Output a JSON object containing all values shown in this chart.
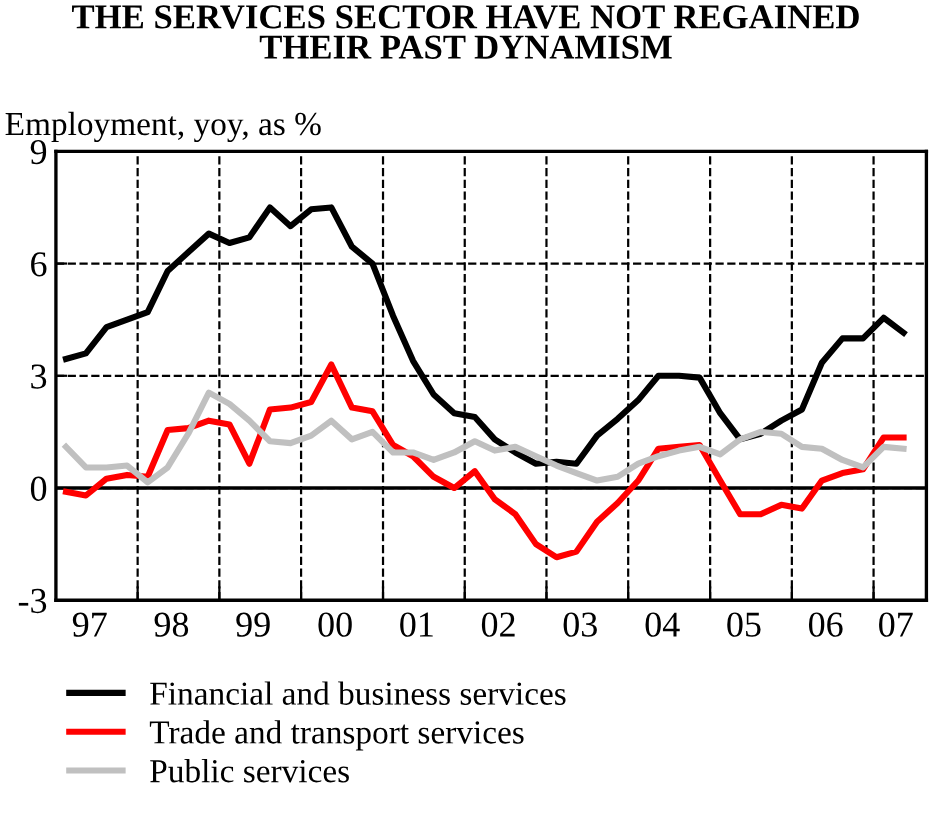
{
  "chart_data": {
    "type": "line",
    "title": "THE SERVICES SECTOR HAVE NOT REGAINED\nTHEIR PAST DYNAMISM",
    "ylabel": "Employment, yoy, as %",
    "x": [
      "1997-02-15",
      "1997-05-15",
      "1997-08-15",
      "1997-11-15",
      "1998-02-15",
      "1998-05-15",
      "1998-08-15",
      "1998-11-15",
      "1999-02-15",
      "1999-05-15",
      "1999-08-15",
      "1999-11-15",
      "2000-02-15",
      "2000-05-15",
      "2000-08-15",
      "2000-11-15",
      "2001-02-15",
      "2001-05-15",
      "2001-08-15",
      "2001-11-15",
      "2002-02-15",
      "2002-05-15",
      "2002-08-15",
      "2002-11-15",
      "2003-02-15",
      "2003-05-15",
      "2003-08-15",
      "2003-11-15",
      "2004-02-15",
      "2004-05-15",
      "2004-08-15",
      "2004-11-15",
      "2005-02-15",
      "2005-05-15",
      "2005-08-15",
      "2005-11-15",
      "2006-02-15",
      "2006-05-15",
      "2006-08-15",
      "2006-11-15",
      "2007-02-15",
      "2007-05-15"
    ],
    "series": [
      {
        "name": "Financial and business services",
        "color": "#000000",
        "values": [
          3.45,
          3.6,
          4.3,
          4.5,
          4.7,
          5.8,
          6.3,
          6.8,
          6.55,
          6.7,
          7.5,
          7.0,
          7.45,
          7.5,
          6.45,
          6.0,
          4.6,
          3.4,
          2.5,
          2.0,
          1.9,
          1.3,
          0.95,
          0.65,
          0.7,
          0.65,
          1.4,
          1.85,
          2.35,
          3.0,
          3.0,
          2.95,
          2.0,
          1.3,
          1.45,
          1.8,
          2.1,
          3.35,
          4.0,
          4.0,
          4.55,
          4.15
        ]
      },
      {
        "name": "Trade and transport services",
        "color": "#ff0000",
        "values": [
          -0.1,
          -0.2,
          0.25,
          0.35,
          0.3,
          1.55,
          1.6,
          1.8,
          1.7,
          0.65,
          2.1,
          2.15,
          2.3,
          3.3,
          2.15,
          2.05,
          1.15,
          0.85,
          0.3,
          0.0,
          0.45,
          -0.3,
          -0.7,
          -1.5,
          -1.85,
          -1.7,
          -0.9,
          -0.4,
          0.2,
          1.05,
          1.1,
          1.15,
          0.2,
          -0.7,
          -0.7,
          -0.45,
          -0.55,
          0.2,
          0.4,
          0.5,
          1.35,
          1.35
        ]
      },
      {
        "name": "Public services",
        "color": "#c0c0c0",
        "values": [
          1.1,
          0.55,
          0.55,
          0.6,
          0.15,
          0.55,
          1.45,
          2.55,
          2.25,
          1.8,
          1.25,
          1.2,
          1.4,
          1.8,
          1.3,
          1.5,
          0.95,
          0.95,
          0.75,
          0.95,
          1.25,
          1.0,
          1.1,
          0.85,
          0.6,
          0.4,
          0.2,
          0.3,
          0.65,
          0.85,
          1.0,
          1.1,
          0.9,
          1.3,
          1.5,
          1.45,
          1.1,
          1.05,
          0.75,
          0.55,
          1.1,
          1.05
        ]
      }
    ],
    "xlim": [
      "1997-01-01",
      "2007-08-25"
    ],
    "xticks": [
      {
        "value": "1998-01-01",
        "label": null
      },
      {
        "value": "1999-01-01",
        "label": null
      },
      {
        "value": "2000-01-01",
        "label": null
      },
      {
        "value": "2001-01-01",
        "label": null
      },
      {
        "value": "2002-01-01",
        "label": null
      },
      {
        "value": "2003-01-01",
        "label": null
      },
      {
        "value": "2004-01-01",
        "label": null
      },
      {
        "value": "2005-01-01",
        "label": null
      },
      {
        "value": "2006-01-01",
        "label": null
      },
      {
        "value": "2007-01-01",
        "label": null
      },
      {
        "value": "1997-06-01",
        "label": "97"
      },
      {
        "value": "1998-06-01",
        "label": "98"
      },
      {
        "value": "1999-06-01",
        "label": "99"
      },
      {
        "value": "2000-06-01",
        "label": "00"
      },
      {
        "value": "2001-06-01",
        "label": "01"
      },
      {
        "value": "2002-06-01",
        "label": "02"
      },
      {
        "value": "2003-06-01",
        "label": "03"
      },
      {
        "value": "2004-06-01",
        "label": "04"
      },
      {
        "value": "2005-06-01",
        "label": "05"
      },
      {
        "value": "2006-06-01",
        "label": "06"
      },
      {
        "value": "2007-04-10",
        "label": "07"
      }
    ],
    "ylim": [
      -3,
      9
    ],
    "yticks": [
      -3,
      0,
      3,
      6,
      9
    ],
    "ref_lines": [
      {
        "axis": "y",
        "value": 0,
        "color": "#000000",
        "line_style": "solid"
      }
    ],
    "grid": true,
    "legend": "bottom",
    "marker": "none",
    "line_style": "solid"
  }
}
